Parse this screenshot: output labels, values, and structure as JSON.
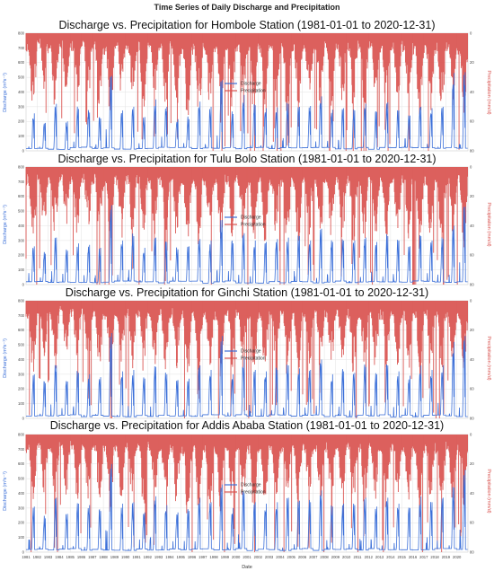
{
  "figure": {
    "title": "Time Series of Daily Discharge and Precipitation",
    "xlabel": "Date"
  },
  "colors": {
    "discharge": "#3b6fd8",
    "precipitation": "#d9534f",
    "grid": "#e3e3e3"
  },
  "chart_data": [
    {
      "type": "line",
      "title": "Discharge vs. Precipitation for  Hombole Station (1981-01-01 to 2020-12-31)",
      "xlabel": "",
      "ylabel": "Discharge (m³s⁻¹)",
      "y2label": "Precipitation (mm/d)",
      "ylim": [
        0,
        800
      ],
      "yticks": [
        "0",
        "100",
        "200",
        "300",
        "400",
        "500",
        "600",
        "700",
        "800"
      ],
      "y2lim": [
        80,
        0
      ],
      "y2ticks": [
        "0",
        "20",
        "40",
        "60",
        "80"
      ],
      "y2_inverted": true,
      "x": [
        "1981",
        "1982",
        "1983",
        "1984",
        "1985",
        "1986",
        "1987",
        "1988",
        "1989",
        "1990",
        "1991",
        "1992",
        "1993",
        "1994",
        "1995",
        "1996",
        "1997",
        "1998",
        "1999",
        "2000",
        "2001",
        "2002",
        "2003",
        "2004",
        "2005",
        "2006",
        "2007",
        "2008",
        "2009",
        "2010",
        "2011",
        "2012",
        "2013",
        "2014",
        "2015",
        "2016",
        "2017",
        "2018",
        "2019",
        "2020"
      ],
      "legend": [
        "Discharge",
        "Precipitation"
      ],
      "legend_position": "center",
      "series": [
        {
          "name": "Discharge",
          "values": [
            255,
            190,
            320,
            200,
            285,
            260,
            220,
            510,
            275,
            300,
            230,
            350,
            300,
            215,
            215,
            335,
            300,
            480,
            250,
            380,
            310,
            290,
            295,
            320,
            300,
            305,
            370,
            280,
            290,
            275,
            320,
            265,
            330,
            275,
            240,
            300,
            290,
            300,
            530,
            535
          ]
        },
        {
          "name": "Precipitation",
          "values": [
            57,
            38,
            55,
            42,
            50,
            45,
            52,
            60,
            48,
            47,
            55,
            45,
            50,
            52,
            65,
            60,
            55,
            62,
            50,
            52,
            60,
            55,
            52,
            58,
            57,
            50,
            55,
            50,
            50,
            52,
            55,
            50,
            58,
            48,
            52,
            60,
            55,
            62,
            52,
            58
          ]
        }
      ]
    },
    {
      "type": "line",
      "title": "Discharge vs. Precipitation for  Tulu Bolo Station (1981-01-01 to 2020-12-31)",
      "xlabel": "",
      "ylabel": "Discharge (m³s⁻¹)",
      "y2label": "Precipitation (mm/d)",
      "ylim": [
        0,
        800
      ],
      "yticks": [
        "0",
        "100",
        "200",
        "300",
        "400",
        "500",
        "600",
        "700",
        "800"
      ],
      "y2lim": [
        80,
        0
      ],
      "y2ticks": [
        "0",
        "20",
        "40",
        "60",
        "80"
      ],
      "y2_inverted": true,
      "x": [
        "1981",
        "1982",
        "1983",
        "1984",
        "1985",
        "1986",
        "1987",
        "1988",
        "1989",
        "1990",
        "1991",
        "1992",
        "1993",
        "1994",
        "1995",
        "1996",
        "1997",
        "1998",
        "1999",
        "2000",
        "2001",
        "2002",
        "2003",
        "2004",
        "2005",
        "2006",
        "2007",
        "2008",
        "2009",
        "2010",
        "2011",
        "2012",
        "2013",
        "2014",
        "2015",
        "2016",
        "2017",
        "2018",
        "2019",
        "2020"
      ],
      "legend": [
        "Discharge",
        "Precipitation"
      ],
      "legend_position": "center",
      "series": [
        {
          "name": "Discharge",
          "values": [
            260,
            210,
            320,
            230,
            280,
            270,
            250,
            540,
            300,
            330,
            250,
            320,
            290,
            240,
            260,
            310,
            300,
            440,
            280,
            350,
            300,
            290,
            310,
            320,
            330,
            300,
            380,
            290,
            300,
            300,
            320,
            290,
            330,
            300,
            260,
            330,
            300,
            310,
            400,
            530
          ]
        },
        {
          "name": "Precipitation",
          "values": [
            52,
            45,
            50,
            40,
            48,
            45,
            50,
            55,
            50,
            48,
            52,
            46,
            50,
            50,
            58,
            55,
            52,
            55,
            48,
            50,
            55,
            52,
            50,
            55,
            55,
            48,
            52,
            50,
            50,
            52,
            55,
            50,
            55,
            48,
            50,
            58,
            52,
            55,
            50,
            55
          ]
        }
      ]
    },
    {
      "type": "line",
      "title": "Discharge vs. Precipitation for  Ginchi Station (1981-01-01 to 2020-12-31)",
      "xlabel": "",
      "ylabel": "Discharge (m³s⁻¹)",
      "y2label": "Precipitation (mm/d)",
      "ylim": [
        0,
        800
      ],
      "yticks": [
        "0",
        "100",
        "200",
        "300",
        "400",
        "500",
        "600",
        "700",
        "800"
      ],
      "y2lim": [
        80,
        0
      ],
      "y2ticks": [
        "0",
        "20",
        "40",
        "60",
        "80"
      ],
      "y2_inverted": true,
      "x": [
        "1981",
        "1982",
        "1983",
        "1984",
        "1985",
        "1986",
        "1987",
        "1988",
        "1989",
        "1990",
        "1991",
        "1992",
        "1993",
        "1994",
        "1995",
        "1996",
        "1997",
        "1998",
        "1999",
        "2000",
        "2001",
        "2002",
        "2003",
        "2004",
        "2005",
        "2006",
        "2007",
        "2008",
        "2009",
        "2010",
        "2011",
        "2012",
        "2013",
        "2014",
        "2015",
        "2016",
        "2017",
        "2018",
        "2019",
        "2020"
      ],
      "legend": [
        "Discharge",
        "Precipitation"
      ],
      "legend_position": "center",
      "series": [
        {
          "name": "Discharge",
          "values": [
            300,
            240,
            360,
            250,
            310,
            300,
            280,
            580,
            320,
            330,
            270,
            350,
            300,
            260,
            270,
            360,
            330,
            560,
            300,
            420,
            330,
            320,
            330,
            360,
            340,
            330,
            400,
            300,
            320,
            310,
            350,
            300,
            360,
            320,
            290,
            360,
            330,
            360,
            520,
            560
          ]
        },
        {
          "name": "Precipitation",
          "values": [
            50,
            42,
            48,
            40,
            45,
            44,
            48,
            55,
            46,
            47,
            50,
            45,
            48,
            50,
            55,
            52,
            50,
            55,
            47,
            48,
            52,
            50,
            48,
            52,
            52,
            46,
            50,
            48,
            48,
            50,
            52,
            48,
            52,
            46,
            48,
            55,
            50,
            52,
            48,
            52
          ]
        }
      ]
    },
    {
      "type": "line",
      "title": "Discharge vs. Precipitation for  Addis Ababa Station (1981-01-01 to 2020-12-31)",
      "xlabel": "Date",
      "ylabel": "Discharge (m³s⁻¹)",
      "y2label": "Precipitation (mm/d)",
      "ylim": [
        0,
        800
      ],
      "yticks": [
        "0",
        "100",
        "200",
        "300",
        "400",
        "500",
        "600",
        "700",
        "800"
      ],
      "y2lim": [
        80,
        0
      ],
      "y2ticks": [
        "0",
        "20",
        "40",
        "60",
        "80"
      ],
      "y2_inverted": true,
      "x": [
        "1981",
        "1982",
        "1983",
        "1984",
        "1985",
        "1986",
        "1987",
        "1988",
        "1989",
        "1990",
        "1991",
        "1992",
        "1993",
        "1994",
        "1995",
        "1996",
        "1997",
        "1998",
        "1999",
        "2000",
        "2001",
        "2002",
        "2003",
        "2004",
        "2005",
        "2006",
        "2007",
        "2008",
        "2009",
        "2010",
        "2011",
        "2012",
        "2013",
        "2014",
        "2015",
        "2016",
        "2017",
        "2018",
        "2019",
        "2020"
      ],
      "legend": [
        "Discharge",
        "Precipitation"
      ],
      "legend_position": "center",
      "series": [
        {
          "name": "Discharge",
          "values": [
            310,
            230,
            370,
            260,
            330,
            320,
            280,
            600,
            330,
            340,
            270,
            380,
            320,
            270,
            280,
            370,
            340,
            460,
            300,
            400,
            340,
            330,
            340,
            370,
            350,
            340,
            420,
            310,
            330,
            320,
            370,
            310,
            370,
            330,
            300,
            380,
            340,
            370,
            440,
            560
          ]
        },
        {
          "name": "Precipitation",
          "values": [
            50,
            40,
            48,
            42,
            46,
            44,
            48,
            56,
            47,
            47,
            52,
            45,
            48,
            50,
            60,
            54,
            52,
            56,
            47,
            49,
            55,
            51,
            49,
            54,
            53,
            47,
            51,
            49,
            49,
            51,
            53,
            49,
            54,
            47,
            49,
            57,
            51,
            54,
            49,
            54
          ]
        }
      ]
    }
  ]
}
